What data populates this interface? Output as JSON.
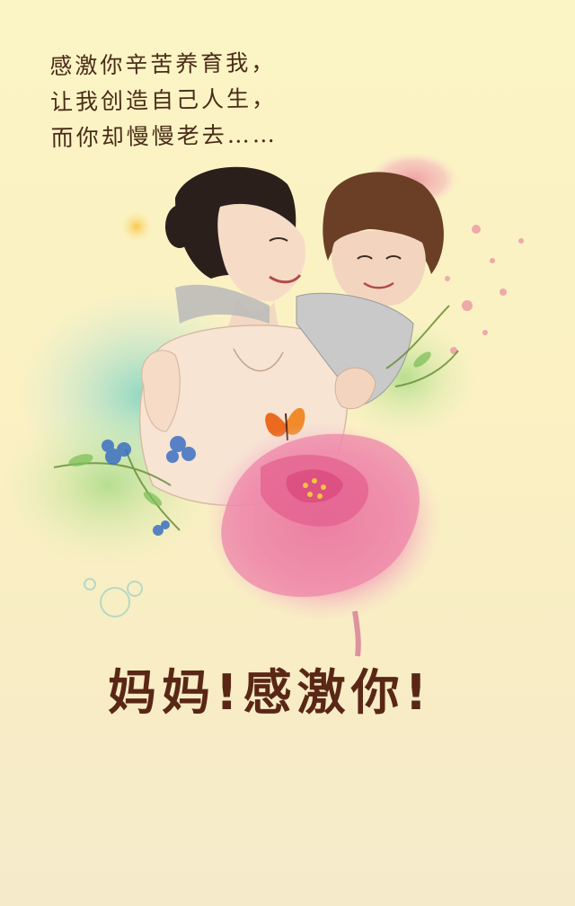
{
  "poem": {
    "line1": "感激你辛苦养育我，",
    "line2": "让我创造自己人生，",
    "line3": "而你却慢慢老去……"
  },
  "headline": "妈妈!感激你!",
  "colors": {
    "background": "#fbf4c4",
    "text": "#4a2c18",
    "headline": "#5a2716",
    "flower": "#e8789a",
    "accent_teal": "#7fd3c8"
  },
  "icons": [
    "butterfly-icon",
    "peony-flower-icon",
    "blue-flower-icon"
  ]
}
